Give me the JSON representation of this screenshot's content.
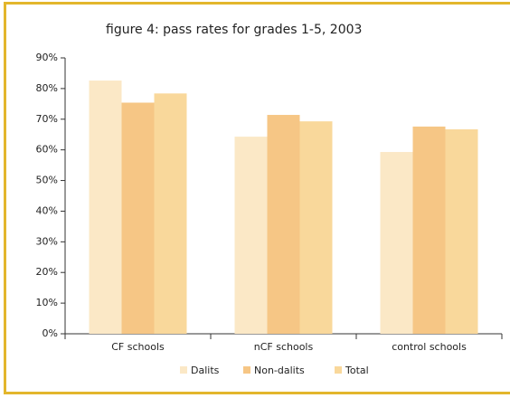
{
  "chart_data": {
    "type": "bar",
    "title": "figure 4:  pass rates for grades 1-5, 2003",
    "categories": [
      "CF schools",
      "nCF schools",
      "control schools"
    ],
    "series": [
      {
        "name": "Dalits",
        "color": "#fbe8c6",
        "values": [
          82.6,
          64.3,
          59.3
        ]
      },
      {
        "name": "Non-dalits",
        "color": "#f6c685",
        "values": [
          75.4,
          71.4,
          67.6
        ]
      },
      {
        "name": "Total",
        "color": "#f9d89b",
        "values": [
          78.4,
          69.3,
          66.7
        ]
      }
    ],
    "ylim": [
      0,
      90
    ],
    "yticks": [
      {
        "value": 0,
        "label": "0%"
      },
      {
        "value": 10,
        "label": "10%"
      },
      {
        "value": 20,
        "label": "20%"
      },
      {
        "value": 30,
        "label": "30%"
      },
      {
        "value": 40,
        "label": "40%"
      },
      {
        "value": 50,
        "label": "50%"
      },
      {
        "value": 60,
        "label": "60%"
      },
      {
        "value": 70,
        "label": "70%"
      },
      {
        "value": 80,
        "label": "80%"
      },
      {
        "value": 90,
        "label": "90%"
      }
    ]
  }
}
